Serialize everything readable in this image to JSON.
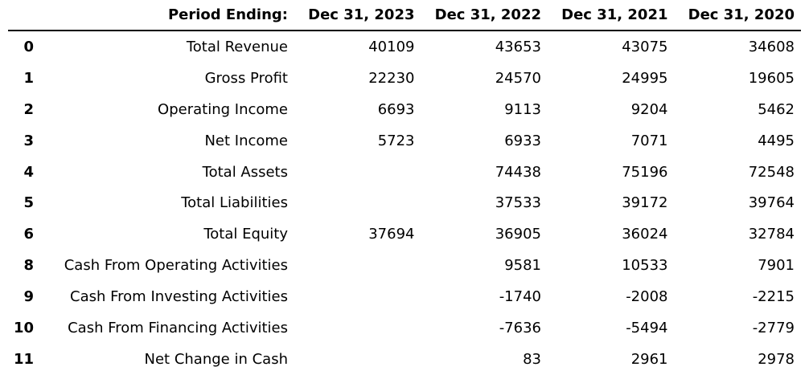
{
  "header": {
    "index_label": "",
    "period_label": "Period Ending:",
    "columns": [
      "Dec 31, 2023",
      "Dec 31, 2022",
      "Dec 31, 2021",
      "Dec 31, 2020"
    ]
  },
  "rows": [
    {
      "index": "0",
      "label": "Total Revenue",
      "values": [
        "40109",
        "43653",
        "43075",
        "34608"
      ]
    },
    {
      "index": "1",
      "label": "Gross Profit",
      "values": [
        "22230",
        "24570",
        "24995",
        "19605"
      ]
    },
    {
      "index": "2",
      "label": "Operating Income",
      "values": [
        "6693",
        "9113",
        "9204",
        "5462"
      ]
    },
    {
      "index": "3",
      "label": "Net Income",
      "values": [
        "5723",
        "6933",
        "7071",
        "4495"
      ]
    },
    {
      "index": "4",
      "label": "Total Assets",
      "values": [
        "",
        "74438",
        "75196",
        "72548"
      ]
    },
    {
      "index": "5",
      "label": "Total Liabilities",
      "values": [
        "",
        "37533",
        "39172",
        "39764"
      ]
    },
    {
      "index": "6",
      "label": "Total Equity",
      "values": [
        "37694",
        "36905",
        "36024",
        "32784"
      ]
    },
    {
      "index": "8",
      "label": "Cash From Operating Activities",
      "values": [
        "",
        "9581",
        "10533",
        "7901"
      ]
    },
    {
      "index": "9",
      "label": "Cash From Investing Activities",
      "values": [
        "",
        "-1740",
        "-2008",
        "-2215"
      ]
    },
    {
      "index": "10",
      "label": "Cash From Financing Activities",
      "values": [
        "",
        "-7636",
        "-5494",
        "-2779"
      ]
    },
    {
      "index": "11",
      "label": "Net Change in Cash",
      "values": [
        "",
        "83",
        "2961",
        "2978"
      ]
    }
  ]
}
